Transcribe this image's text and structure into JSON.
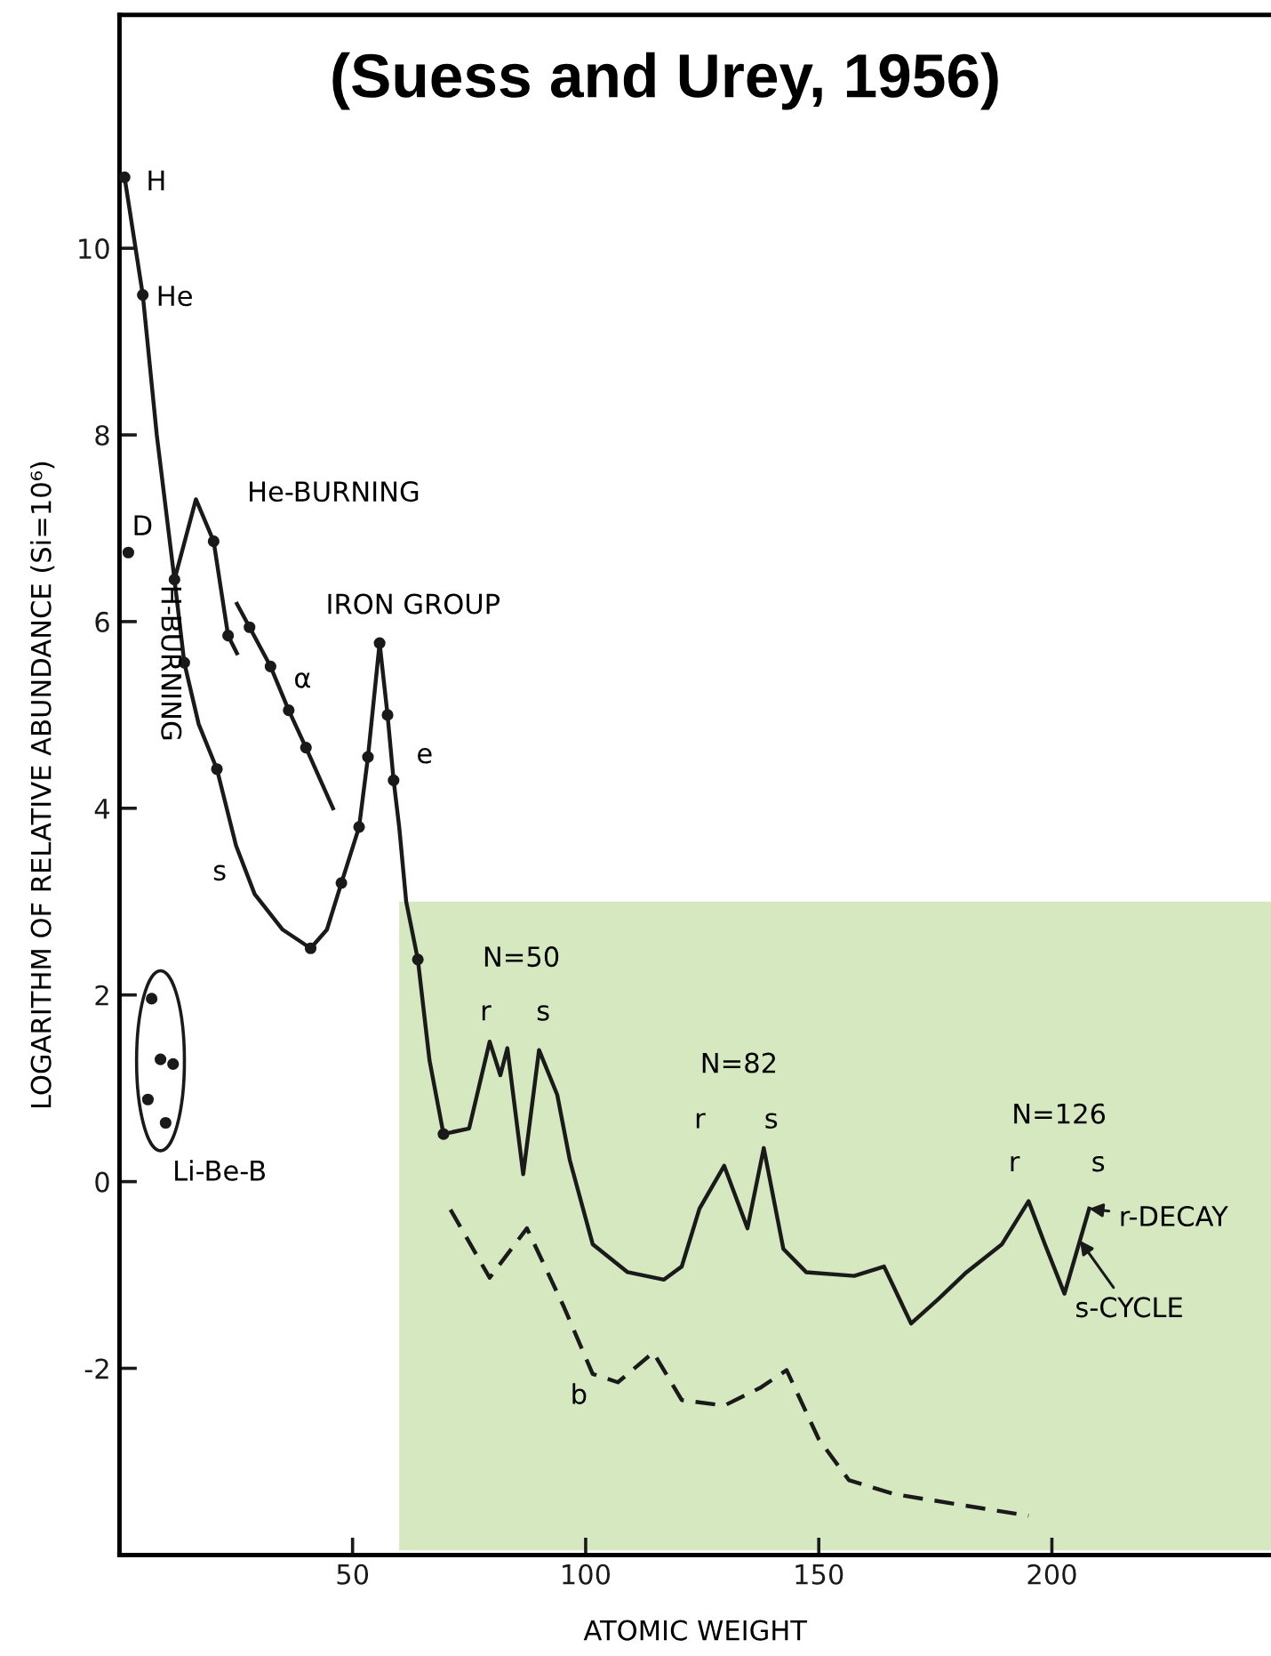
{
  "chart_data": {
    "type": "line",
    "title": "(Suess and Urey, 1956)",
    "xlabel": "ATOMIC WEIGHT",
    "ylabel": "LOGARITHM OF RELATIVE ABUNDANCE (Si=10⁶)",
    "xlim": [
      0,
      247
    ],
    "ylim": [
      -4,
      12.5
    ],
    "xticks": [
      50,
      100,
      150,
      200
    ],
    "yticks": [
      -2,
      0,
      2,
      4,
      6,
      8,
      10
    ],
    "grid": false,
    "series": [
      {
        "type": "area",
        "color": "#d5e8c0",
        "x": [
          60,
          60,
          247,
          247
        ],
        "values": [
          -3.95,
          3,
          3,
          -3.95
        ]
      },
      {
        "color": "#1a1a1a",
        "line_style": "solid",
        "x": [
          1.1,
          5,
          8,
          11.8,
          13.9,
          17,
          20.9,
          25,
          29,
          35,
          41,
          44.5,
          47.6,
          51.4,
          53.3,
          55.8,
          57.5,
          58.8,
          60,
          61.5,
          64,
          66.5,
          69.5,
          75,
          79.4,
          81.7,
          83.2,
          86.6,
          90,
          93.9,
          96.6,
          101.5,
          109,
          116.8,
          120.6,
          124.4,
          129.7,
          134.7,
          138.2,
          142.4,
          147.3,
          157.6,
          164,
          169.8,
          175.6,
          181.7,
          189.3,
          195,
          198.5,
          202.7,
          208
        ],
        "values": [
          10.76,
          9.5,
          8.0,
          6.45,
          5.56,
          4.9,
          4.42,
          3.6,
          3.08,
          2.7,
          2.5,
          2.7,
          3.2,
          3.8,
          4.55,
          5.77,
          5.0,
          4.3,
          3.8,
          3.0,
          2.38,
          1.3,
          0.51,
          0.57,
          1.5,
          1.14,
          1.43,
          0.08,
          1.41,
          0.93,
          0.23,
          -0.67,
          -0.97,
          -1.05,
          -0.91,
          -0.29,
          0.17,
          -0.5,
          0.36,
          -0.72,
          -0.97,
          -1.01,
          -0.91,
          -1.52,
          -1.26,
          -0.97,
          -0.67,
          -0.21,
          -0.67,
          -1.2,
          -0.29
        ]
      },
      {
        "color": "#1a1a1a",
        "line_style": "solid",
        "x": [
          11.8,
          16.4,
          20.2,
          23.3,
          25.2
        ],
        "values": [
          6.45,
          7.31,
          6.86,
          5.85,
          5.66
        ]
      },
      {
        "color": "#1a1a1a",
        "line_style": "solid",
        "x": [
          25.2,
          27.9,
          32.4,
          36.3,
          40,
          45.8
        ],
        "values": [
          6.19,
          5.94,
          5.52,
          5.05,
          4.65,
          4.0
        ]
      },
      {
        "color": "#1a1a1a",
        "line_style": "dashed",
        "x": [
          71,
          79.4,
          87.4,
          95.4,
          101.5,
          106.9,
          114.5,
          120.6,
          129.7,
          137.4,
          143.1,
          150,
          156.5,
          166.4,
          195
        ],
        "values": [
          -0.3,
          -1.03,
          -0.5,
          -1.35,
          -2.06,
          -2.15,
          -1.83,
          -2.34,
          -2.4,
          -2.21,
          -2.02,
          -2.76,
          -3.2,
          -3.35,
          -3.58
        ]
      },
      {
        "type": "scatter",
        "color": "#1a1a1a",
        "marker": "circle",
        "x": [
          1.1,
          5,
          1.9,
          11.8,
          13.9,
          20.9,
          41,
          47.6,
          51.4,
          53.3,
          55.8,
          57.5,
          58.8,
          64,
          69.5,
          20.2,
          23.3,
          27.9,
          32.4,
          36.3,
          40
        ],
        "values": [
          10.76,
          9.5,
          6.74,
          6.45,
          5.56,
          4.42,
          2.5,
          3.2,
          3.8,
          4.55,
          5.77,
          5.0,
          4.3,
          2.38,
          0.51,
          6.86,
          5.85,
          5.94,
          5.52,
          5.05,
          4.65
        ]
      },
      {
        "type": "scatter",
        "color": "#1a1a1a",
        "marker": "circle",
        "x": [
          6.9,
          8.8,
          11.5,
          6.1,
          9.9
        ],
        "values": [
          1.96,
          1.31,
          1.26,
          0.88,
          0.63
        ]
      }
    ],
    "annotations": [
      "H",
      "He",
      "D",
      "He-BURNING",
      "H-BURNING",
      "α",
      "IRON GROUP",
      "e",
      "s",
      "Li-Be-B",
      "N=50",
      "r",
      "s",
      "N=82",
      "r",
      "s",
      "N=126",
      "r",
      "s",
      "b",
      {
        "text": "r-DECAY",
        "x": 208,
        "y": -0.29
      },
      {
        "text": "s-CYCLE",
        "x": 206,
        "y": -0.63
      }
    ]
  }
}
